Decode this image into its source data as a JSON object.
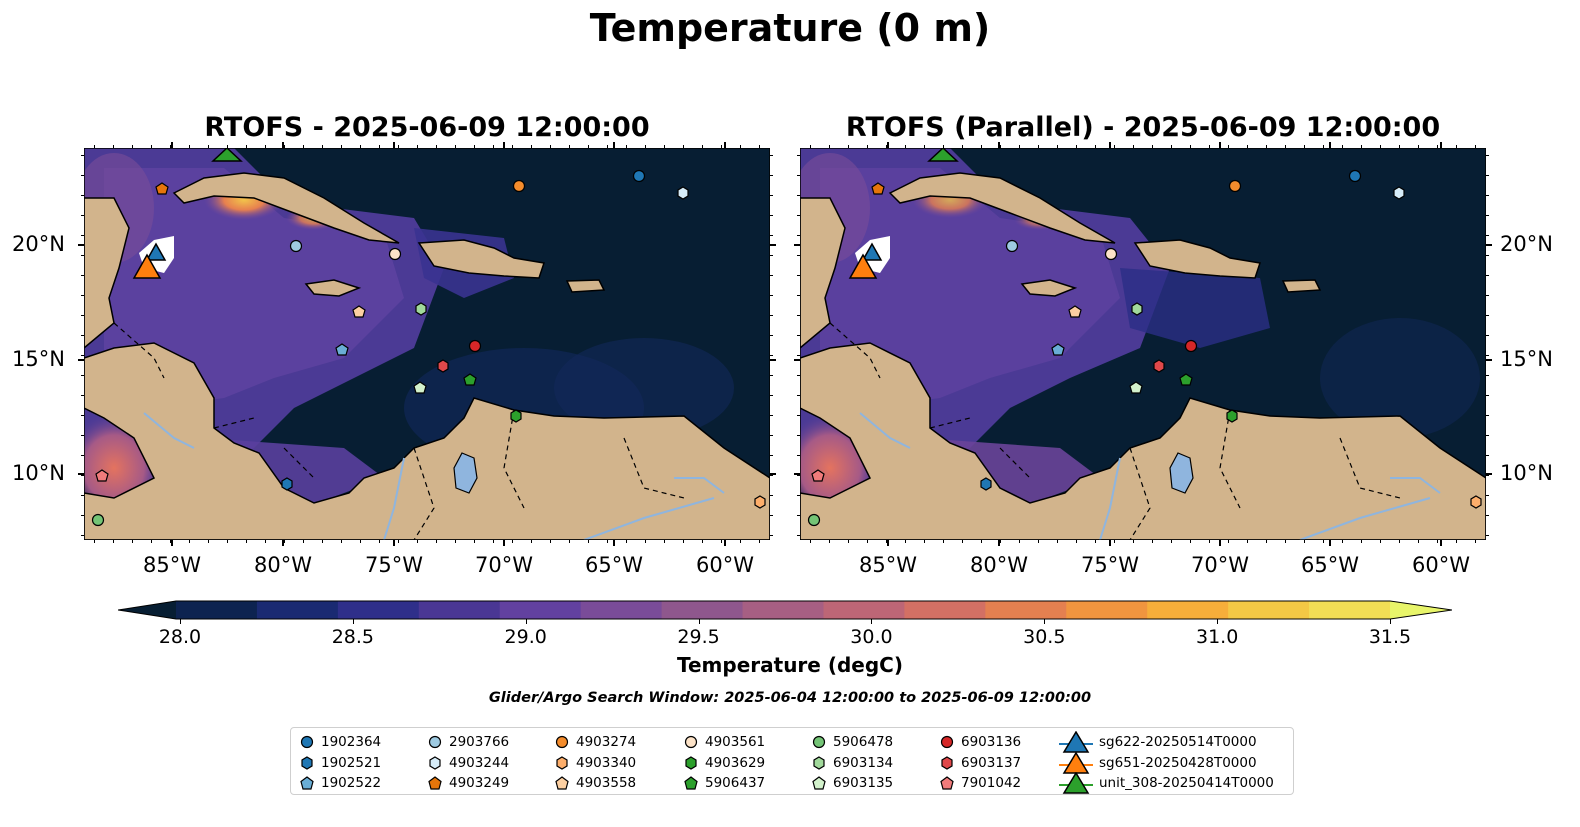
{
  "title": "Temperature (0 m)",
  "panels": [
    {
      "id": "left",
      "title": "RTOFS - 2025-06-09 12:00:00"
    },
    {
      "id": "right",
      "title": "RTOFS (Parallel) - 2025-06-09 12:00:00"
    }
  ],
  "lat_ticks": [
    "20°N",
    "15°N",
    "10°N"
  ],
  "lon_ticks": [
    "85°W",
    "80°W",
    "75°W",
    "70°W",
    "65°W",
    "60°W"
  ],
  "colorbar": {
    "label": "Temperature (degC)",
    "ticks": [
      "28.0",
      "28.5",
      "29.0",
      "29.5",
      "30.0",
      "30.5",
      "31.0",
      "31.5"
    ],
    "min": 28.0,
    "max": 31.5,
    "extend": "both",
    "colors": [
      "#071e33",
      "#0d2350",
      "#1a2a72",
      "#2f2f8a",
      "#4a3794",
      "#6241a0",
      "#7a4c99",
      "#8f578d",
      "#a75f83",
      "#bd6676",
      "#d37064",
      "#e48050",
      "#f0953f",
      "#f6ae3a",
      "#f3c845",
      "#f2dd55",
      "#e8f56a"
    ]
  },
  "search_window": "Glider/Argo Search Window: 2025-06-04 12:00:00 to 2025-06-09 12:00:00",
  "legend": {
    "columns": [
      [
        {
          "label": "1902364",
          "shape": "circle",
          "color": "#1f77b4"
        },
        {
          "label": "1902521",
          "shape": "hexagon",
          "color": "#1f77b4"
        },
        {
          "label": "1902522",
          "shape": "pentagon",
          "color": "#6aaed6"
        }
      ],
      [
        {
          "label": "2903766",
          "shape": "circle",
          "color": "#9ecae1"
        },
        {
          "label": "4903244",
          "shape": "hexagon",
          "color": "#d6ecf8"
        },
        {
          "label": "4903249",
          "shape": "pentagon",
          "color": "#e6750a"
        }
      ],
      [
        {
          "label": "4903274",
          "shape": "circle",
          "color": "#f48c2c"
        },
        {
          "label": "4903340",
          "shape": "hexagon",
          "color": "#fdae6b"
        },
        {
          "label": "4903558",
          "shape": "pentagon",
          "color": "#fdd0a2"
        }
      ],
      [
        {
          "label": "4903561",
          "shape": "circle",
          "color": "#fde3c8"
        },
        {
          "label": "4903629",
          "shape": "hexagon",
          "color": "#2ca02c"
        },
        {
          "label": "5906437",
          "shape": "pentagon",
          "color": "#2ca02c"
        }
      ],
      [
        {
          "label": "5906478",
          "shape": "circle",
          "color": "#74c476"
        },
        {
          "label": "6903134",
          "shape": "hexagon",
          "color": "#a1d99b"
        },
        {
          "label": "6903135",
          "shape": "pentagon",
          "color": "#d3f2cc"
        }
      ],
      [
        {
          "label": "6903136",
          "shape": "circle",
          "color": "#d62728"
        },
        {
          "label": "6903137",
          "shape": "hexagon",
          "color": "#e0484a"
        },
        {
          "label": "7901042",
          "shape": "pentagon",
          "color": "#f07b7b"
        }
      ],
      [
        {
          "label": "sg622-20250514T0000",
          "shape": "triangle",
          "color": "#1f77b4"
        },
        {
          "label": "sg651-20250428T0000",
          "shape": "triangle",
          "color": "#ff7f0e"
        },
        {
          "label": "unit_308-20250414T0000",
          "shape": "triangle",
          "color": "#2ca02c"
        }
      ]
    ]
  },
  "map_colors": {
    "land": "#d2b48c",
    "coast": "#000000",
    "lake": "#8fb5de"
  }
}
